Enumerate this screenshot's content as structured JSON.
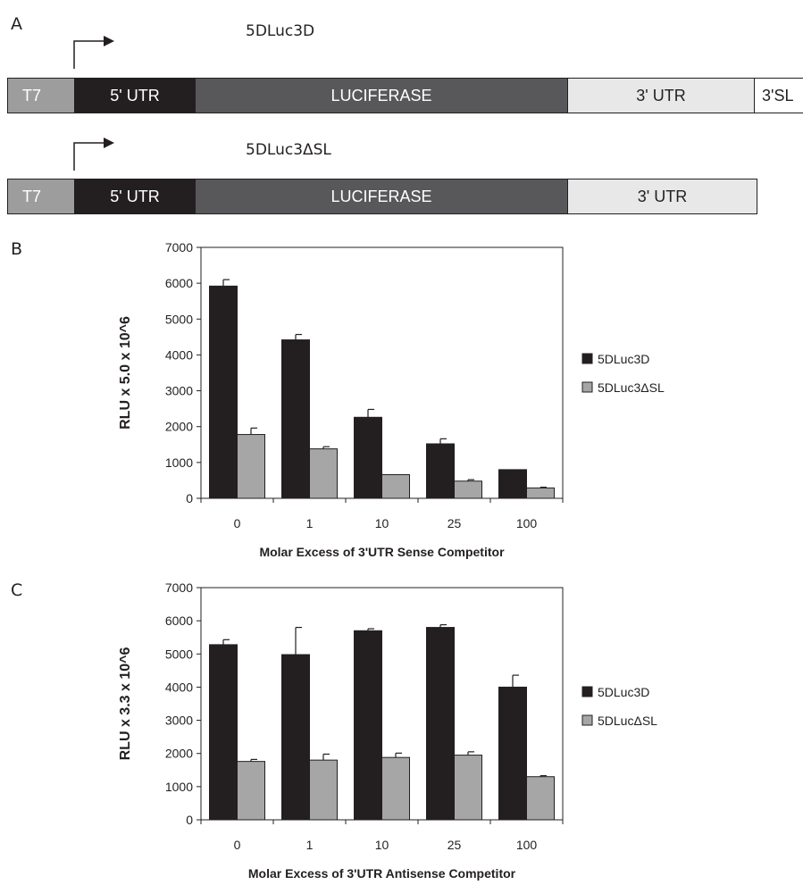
{
  "panels": {
    "a_label": "A",
    "b_label": "B",
    "c_label": "C"
  },
  "constructs": [
    {
      "name": "5DLuc3D",
      "segments": {
        "t7": "T7",
        "utr5": "5' UTR",
        "luc": "LUCIFERASE",
        "utr3": "3' UTR",
        "sl": "3'SL"
      }
    },
    {
      "name": "5DLuc3ΔSL",
      "segments": {
        "t7": "T7",
        "utr5": "5' UTR",
        "luc": "LUCIFERASE",
        "utr3": "3' UTR"
      }
    }
  ],
  "colors": {
    "series1": "#231f20",
    "series2": "#a6a6a6"
  },
  "chart_data": [
    {
      "type": "bar",
      "panel": "B",
      "categories": [
        "0",
        "1",
        "10",
        "25",
        "100"
      ],
      "series": [
        {
          "name": "5DLuc3D",
          "values": [
            5920,
            4420,
            2260,
            1520,
            800
          ],
          "errors": [
            180,
            150,
            220,
            140,
            0
          ]
        },
        {
          "name": "5DLuc3ΔSL",
          "values": [
            1780,
            1380,
            660,
            480,
            290
          ],
          "errors": [
            180,
            60,
            0,
            40,
            20
          ]
        }
      ],
      "ylabel": "RLU x 5.0 x 10^6",
      "xlabel": "Molar Excess of 3'UTR Sense Competitor",
      "ylim": [
        0,
        7000
      ],
      "yticks": [
        "0",
        "1000",
        "2000",
        "3000",
        "4000",
        "5000",
        "6000",
        "7000"
      ],
      "legend_position": "right",
      "grid": false
    },
    {
      "type": "bar",
      "panel": "C",
      "categories": [
        "0",
        "1",
        "10",
        "25",
        "100"
      ],
      "series": [
        {
          "name": "5DLuc3D",
          "values": [
            5280,
            4980,
            5700,
            5800,
            4000
          ],
          "errors": [
            150,
            820,
            60,
            80,
            360
          ]
        },
        {
          "name": "5DLucΔSL",
          "values": [
            1760,
            1800,
            1880,
            1950,
            1300
          ],
          "errors": [
            60,
            180,
            130,
            100,
            30
          ]
        }
      ],
      "ylabel": "RLU x 3.3 x 10^6",
      "xlabel": "Molar Excess of 3'UTR Antisense Competitor",
      "ylim": [
        0,
        7000
      ],
      "yticks": [
        "0",
        "1000",
        "2000",
        "3000",
        "4000",
        "5000",
        "6000",
        "7000"
      ],
      "legend_position": "right",
      "grid": false
    }
  ]
}
